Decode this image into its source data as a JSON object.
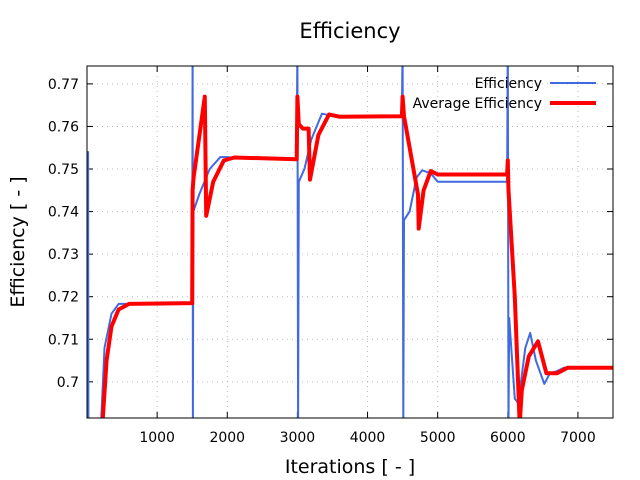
{
  "chart_data": {
    "type": "line",
    "title": "Efficiency",
    "xlabel": "Iterations [ - ]",
    "ylabel": "Efficiency [ - ]",
    "xlim": [
      0,
      7500
    ],
    "ylim": [
      0.6915,
      0.7742
    ],
    "xticks": [
      1000,
      2000,
      3000,
      4000,
      5000,
      6000,
      7000
    ],
    "xtick_labels": [
      "1000",
      "2000",
      "3000",
      "4000",
      "5000",
      "6000",
      "7000"
    ],
    "yticks": [
      0.7,
      0.71,
      0.72,
      0.73,
      0.74,
      0.75,
      0.76,
      0.77
    ],
    "ytick_labels": [
      "0.7",
      "0.71",
      "0.72",
      "0.73",
      "0.74",
      "0.75",
      "0.76",
      "0.77"
    ],
    "grid": true,
    "legend_position": "top-right",
    "series": [
      {
        "name": "Efficiency",
        "color": "#4169e1",
        "points": [
          [
            10,
            0.69
          ],
          [
            15,
            0.754
          ],
          [
            20,
            0.69
          ],
          [
            200,
            0.69
          ],
          [
            250,
            0.708
          ],
          [
            350,
            0.716
          ],
          [
            450,
            0.7183
          ],
          [
            1500,
            0.7183
          ],
          [
            1505,
            0.78
          ],
          [
            1510,
            0.69
          ],
          [
            1515,
            0.74
          ],
          [
            1600,
            0.744
          ],
          [
            1750,
            0.75
          ],
          [
            1900,
            0.7528
          ],
          [
            2000,
            0.7528
          ],
          [
            2200,
            0.7525
          ],
          [
            2990,
            0.7523
          ],
          [
            3000,
            0.78
          ],
          [
            3010,
            0.69
          ],
          [
            3020,
            0.747
          ],
          [
            3100,
            0.75
          ],
          [
            3200,
            0.757
          ],
          [
            3350,
            0.763
          ],
          [
            3500,
            0.7625
          ],
          [
            4490,
            0.7623
          ],
          [
            4500,
            0.78
          ],
          [
            4510,
            0.69
          ],
          [
            4520,
            0.738
          ],
          [
            4600,
            0.74
          ],
          [
            4700,
            0.748
          ],
          [
            4780,
            0.7497
          ],
          [
            4900,
            0.749
          ],
          [
            5000,
            0.747
          ],
          [
            5990,
            0.747
          ],
          [
            6000,
            0.78
          ],
          [
            6010,
            0.69
          ],
          [
            6020,
            0.715
          ],
          [
            6100,
            0.696
          ],
          [
            6150,
            0.695
          ],
          [
            6250,
            0.708
          ],
          [
            6320,
            0.7115
          ],
          [
            6400,
            0.705
          ],
          [
            6520,
            0.6995
          ],
          [
            6600,
            0.702
          ],
          [
            6700,
            0.7025
          ],
          [
            6800,
            0.7033
          ],
          [
            7500,
            0.7033
          ]
        ]
      },
      {
        "name": "Average Efficiency",
        "color": "#ff0000",
        "points": [
          [
            220,
            0.69
          ],
          [
            280,
            0.705
          ],
          [
            350,
            0.713
          ],
          [
            450,
            0.717
          ],
          [
            600,
            0.7183
          ],
          [
            1500,
            0.7185
          ],
          [
            1505,
            0.745
          ],
          [
            1520,
            0.748
          ],
          [
            1680,
            0.767
          ],
          [
            1700,
            0.739
          ],
          [
            1800,
            0.747
          ],
          [
            1950,
            0.752
          ],
          [
            2100,
            0.7527
          ],
          [
            2990,
            0.7523
          ],
          [
            3000,
            0.767
          ],
          [
            3020,
            0.7605
          ],
          [
            3080,
            0.7595
          ],
          [
            3160,
            0.7595
          ],
          [
            3180,
            0.7475
          ],
          [
            3300,
            0.758
          ],
          [
            3450,
            0.7628
          ],
          [
            3600,
            0.7623
          ],
          [
            4490,
            0.7624
          ],
          [
            4500,
            0.767
          ],
          [
            4520,
            0.7624
          ],
          [
            4720,
            0.744
          ],
          [
            4730,
            0.736
          ],
          [
            4800,
            0.745
          ],
          [
            4900,
            0.7495
          ],
          [
            5000,
            0.7487
          ],
          [
            5990,
            0.7487
          ],
          [
            6000,
            0.752
          ],
          [
            6010,
            0.745
          ],
          [
            6100,
            0.72
          ],
          [
            6170,
            0.69
          ],
          [
            6200,
            0.698
          ],
          [
            6300,
            0.706
          ],
          [
            6430,
            0.7095
          ],
          [
            6550,
            0.702
          ],
          [
            6700,
            0.702
          ],
          [
            6850,
            0.7033
          ],
          [
            7500,
            0.7033
          ]
        ]
      }
    ]
  }
}
